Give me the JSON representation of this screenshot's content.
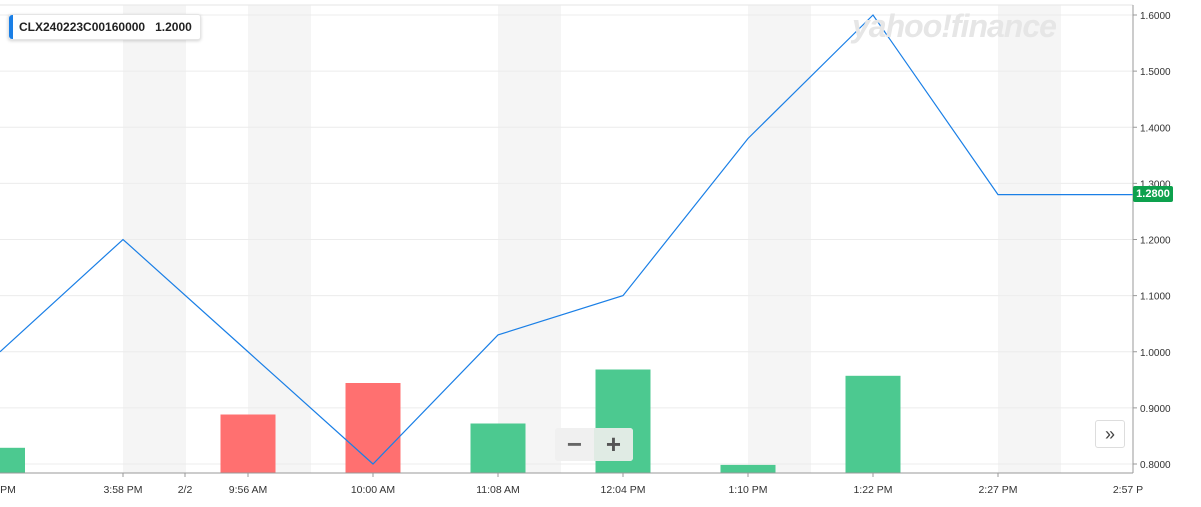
{
  "legend": {
    "symbol": "CLX240223C00160000",
    "value": "1.2000"
  },
  "watermark": "yahoo!finance",
  "last_price_label": "1.2800",
  "controls": {
    "zoom_out": "−",
    "zoom_in": "+",
    "forward": "»"
  },
  "colors": {
    "line": "#1a7fe6",
    "up": "#4cc990",
    "down": "#ff7070",
    "last": "#0da14d",
    "band": "#f5f5f5"
  },
  "chart_data": {
    "type": "line",
    "title": "",
    "x_labels": [
      "PM",
      "3:58 PM",
      "2/2",
      "9:56 AM",
      "10:00 AM",
      "11:08 AM",
      "12:04 PM",
      "1:10 PM",
      "1:22 PM",
      "2:27 PM",
      "2:57 P"
    ],
    "y_ticks": [
      "1.6000",
      "1.5000",
      "1.4000",
      "1.3000",
      "1.2000",
      "1.1000",
      "1.0000",
      "0.9000",
      "0.8000"
    ],
    "ylim": [
      0.8,
      1.6
    ],
    "series": [
      {
        "values": [
          1.0,
          1.2,
          1.0,
          0.8,
          1.03,
          1.1,
          1.38,
          1.6,
          1.28,
          1.28
        ]
      }
    ],
    "volume": [
      {
        "direction": "up",
        "level": 0.28
      },
      {
        "direction": "down",
        "level": 0.65
      },
      {
        "direction": "down",
        "level": 1.0
      },
      {
        "direction": "up",
        "level": 0.55
      },
      {
        "direction": "up",
        "level": 1.15
      },
      {
        "direction": "up",
        "level": 0.09
      },
      {
        "direction": "up",
        "level": 1.08
      }
    ],
    "grid": true
  }
}
